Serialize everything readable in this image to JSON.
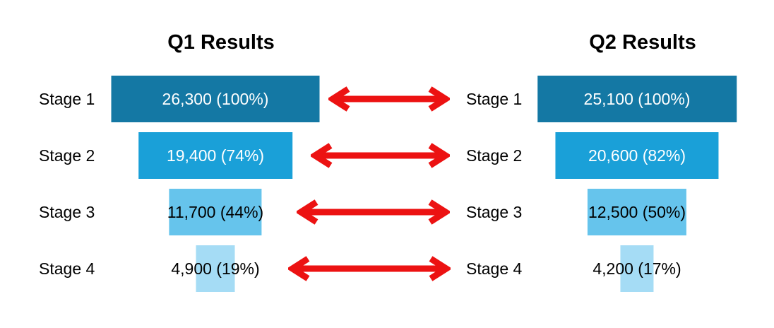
{
  "chart_data": [
    {
      "type": "bar",
      "subtype": "funnel",
      "title": "Q1 Results",
      "orientation": "horizontal-centered",
      "categories": [
        "Stage 1",
        "Stage 2",
        "Stage 3",
        "Stage 4"
      ],
      "values": [
        26300,
        19400,
        11700,
        4900
      ],
      "percentages": [
        100,
        74,
        44,
        19
      ],
      "value_labels": [
        "26,300 (100%)",
        "19,400 (74%)",
        "11,700 (44%)",
        "4,900 (19%)"
      ],
      "legend": "none",
      "grid": false
    },
    {
      "type": "bar",
      "subtype": "funnel",
      "title": "Q2 Results",
      "orientation": "horizontal-centered",
      "categories": [
        "Stage 1",
        "Stage 2",
        "Stage 3",
        "Stage 4"
      ],
      "values": [
        25100,
        20600,
        12500,
        4200
      ],
      "percentages": [
        100,
        82,
        50,
        17
      ],
      "value_labels": [
        "25,100 (100%)",
        "20,600 (82%)",
        "12,500 (50%)",
        "4,200 (17%)"
      ],
      "legend": "none",
      "grid": false
    }
  ],
  "connectors": {
    "icon": "double-headed-arrow",
    "count": 4,
    "meaning": "stage-to-stage comparison between Q1 and Q2"
  },
  "colors": {
    "stage_bar_colors": [
      "#1478A4",
      "#1AA0D8",
      "#66C4EC",
      "#A5DCF5"
    ],
    "stage_value_text_colors": [
      "#ffffff",
      "#ffffff",
      "#000000",
      "#000000"
    ],
    "arrow": "#EC1212",
    "title_text": "#000000",
    "label_text": "#000000",
    "background": "#ffffff"
  }
}
